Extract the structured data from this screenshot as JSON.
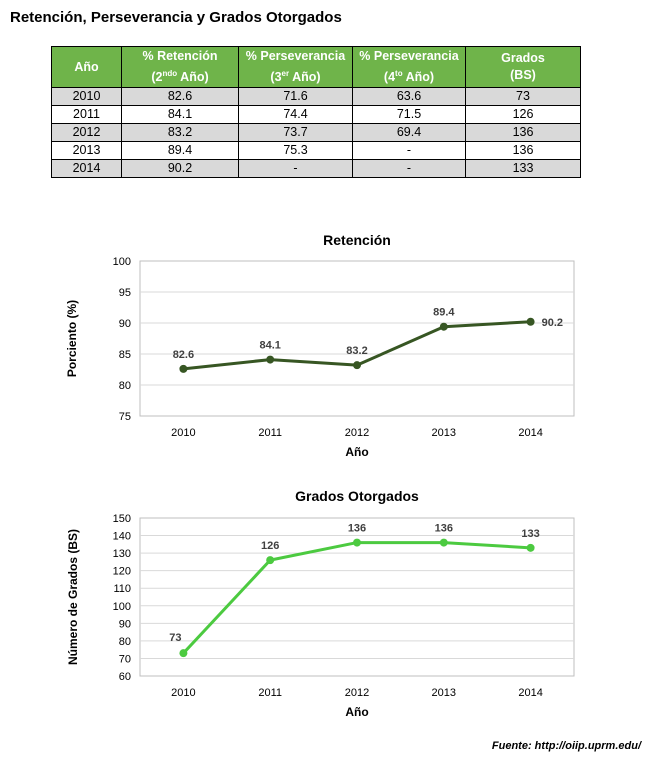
{
  "page_title": "Retención, Perseverancia y Grados Otorgados",
  "table": {
    "headers": [
      {
        "line1": "Año",
        "line2": "",
        "sup": "",
        "tail": ""
      },
      {
        "line1": "% Retención",
        "line2": "(2",
        "sup": "ndo",
        "tail": " Año)"
      },
      {
        "line1": "% Perseverancia",
        "line2": "(3",
        "sup": "er",
        "tail": " Año)"
      },
      {
        "line1": "% Perseverancia",
        "line2": "(4",
        "sup": "to",
        "tail": " Año)"
      },
      {
        "line1": "Grados",
        "line2": "(BS)",
        "sup": "",
        "tail": ""
      }
    ],
    "rows": [
      [
        "2010",
        "82.6",
        "71.6",
        "63.6",
        "73"
      ],
      [
        "2011",
        "84.1",
        "74.4",
        "71.5",
        "126"
      ],
      [
        "2012",
        "83.2",
        "73.7",
        "69.4",
        "136"
      ],
      [
        "2013",
        "89.4",
        "75.3",
        "-",
        "136"
      ],
      [
        "2014",
        "90.2",
        "-",
        "-",
        "133"
      ]
    ]
  },
  "chart_data": [
    {
      "type": "line",
      "title": "Retención",
      "xlabel": "Año",
      "ylabel": "Porciento (%)",
      "categories": [
        "2010",
        "2011",
        "2012",
        "2013",
        "2014"
      ],
      "values": [
        82.6,
        84.1,
        83.2,
        89.4,
        90.2
      ],
      "value_labels": [
        "82.6",
        "84.1",
        "83.2",
        "89.4",
        "90.2"
      ],
      "ylim": [
        75,
        100
      ],
      "yticks": [
        75,
        80,
        85,
        90,
        95,
        100
      ],
      "grid": true,
      "color": "#375623"
    },
    {
      "type": "line",
      "title": "Grados Otorgados",
      "xlabel": "Año",
      "ylabel": "Número de Grados (BS)",
      "categories": [
        "2010",
        "2011",
        "2012",
        "2013",
        "2014"
      ],
      "values": [
        73,
        126,
        136,
        136,
        133
      ],
      "value_labels": [
        "73",
        "126",
        "136",
        "136",
        "133"
      ],
      "ylim": [
        60,
        150
      ],
      "yticks": [
        60,
        70,
        80,
        90,
        100,
        110,
        120,
        130,
        140,
        150
      ],
      "grid": true,
      "color": "#4cca40"
    }
  ],
  "source_note": "Fuente: http://oiip.uprm.edu/"
}
